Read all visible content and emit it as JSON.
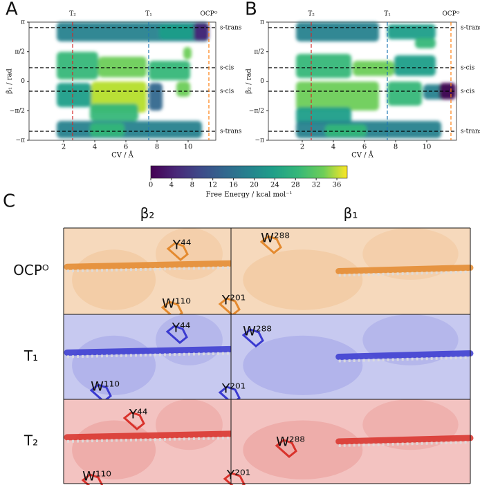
{
  "panels": [
    {
      "label": "A",
      "ylabel": "β₁ / rad",
      "xlabel": "CV / Å",
      "xticks": [
        2,
        4,
        6,
        8,
        10
      ],
      "yticks": [
        "π",
        "π/2",
        "0",
        "−π/2",
        "−π"
      ],
      "line_labels": [
        "T₂",
        "T₁",
        "OCPᴼ"
      ],
      "state_labels": [
        "s-trans",
        "s-cis",
        "s-cis",
        "s-trans"
      ]
    },
    {
      "label": "B",
      "ylabel": "β₂ / rad",
      "xlabel": "CV / Å",
      "xticks": [
        2,
        4,
        6,
        8,
        10
      ],
      "yticks": [
        "π",
        "π/2",
        "0",
        "−π/2",
        "−π"
      ],
      "line_labels": [
        "T₂",
        "T₁",
        "OCPᴼ"
      ],
      "state_labels": [
        "s-trans",
        "s-cis",
        "s-cis",
        "s-trans"
      ]
    }
  ],
  "colorbar": {
    "label": "Free Energy / kcal mol⁻¹",
    "ticks": [
      0,
      4,
      8,
      12,
      16,
      20,
      24,
      28,
      32,
      36
    ]
  },
  "structures": {
    "label": "C",
    "columns": [
      "β₂",
      "β₁"
    ],
    "rows": [
      {
        "label": "OCPᴼ",
        "cells": [
          [
            "Y⁴⁴",
            "W¹¹⁰"
          ],
          [
            "W²⁸⁸",
            "Y²⁰¹"
          ]
        ]
      },
      {
        "label": "T₁",
        "cells": [
          [
            "Y⁴⁴",
            "W¹¹⁰"
          ],
          [
            "W²⁸⁸",
            "Y²⁰¹"
          ]
        ]
      },
      {
        "label": "T₂",
        "cells": [
          [
            "Y⁴⁴",
            "W¹¹⁰"
          ],
          [
            "W²⁸⁸",
            "Y²⁰¹"
          ]
        ]
      }
    ]
  }
}
